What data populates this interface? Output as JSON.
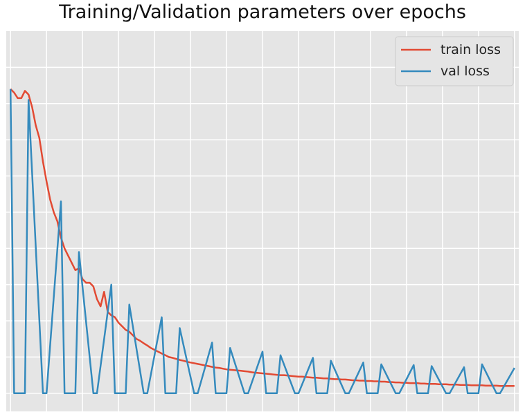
{
  "chart_data": {
    "type": "line",
    "title": "Training/Validation parameters over epochs",
    "xlabel": "",
    "ylabel": "",
    "xlim": [
      -1.2,
      141.2
    ],
    "ylim": [
      -0.05,
      1.0
    ],
    "grid": true,
    "background": "#e5e5e5",
    "legend_position": "top-right",
    "series": [
      {
        "name": "train loss",
        "color": "#e24a33",
        "x": [
          0,
          1,
          2,
          3,
          4,
          5,
          6,
          7,
          8,
          9,
          10,
          11,
          12,
          13,
          14,
          15,
          16,
          17,
          18,
          19,
          20,
          21,
          22,
          23,
          24,
          25,
          26,
          27,
          28,
          29,
          30,
          31,
          32,
          33,
          34,
          35,
          36,
          37,
          38,
          39,
          40,
          41,
          42,
          43,
          44,
          45,
          46,
          47,
          48,
          49,
          50,
          51,
          52,
          53,
          54,
          55,
          56,
          57,
          58,
          59,
          60,
          61,
          62,
          63,
          64,
          65,
          66,
          67,
          68,
          69,
          70,
          71,
          72,
          73,
          74,
          75,
          76,
          77,
          78,
          79,
          80,
          81,
          82,
          83,
          84,
          85,
          86,
          87,
          88,
          89,
          90,
          91,
          92,
          93,
          94,
          95,
          96,
          97,
          98,
          99,
          100,
          101,
          102,
          103,
          104,
          105,
          106,
          107,
          108,
          109,
          110,
          111,
          112,
          113,
          114,
          115,
          116,
          117,
          118,
          119,
          120,
          121,
          122,
          123,
          124,
          125,
          126,
          127,
          128,
          129,
          130,
          131,
          132,
          133,
          134,
          135,
          136,
          137,
          138,
          139,
          140
        ],
        "values": [
          0.84,
          0.83,
          0.815,
          0.815,
          0.835,
          0.825,
          0.79,
          0.74,
          0.705,
          0.64,
          0.585,
          0.535,
          0.5,
          0.475,
          0.43,
          0.4,
          0.38,
          0.36,
          0.34,
          0.345,
          0.315,
          0.305,
          0.305,
          0.295,
          0.26,
          0.24,
          0.28,
          0.225,
          0.215,
          0.21,
          0.195,
          0.185,
          0.175,
          0.17,
          0.16,
          0.15,
          0.145,
          0.138,
          0.132,
          0.125,
          0.12,
          0.115,
          0.11,
          0.105,
          0.1,
          0.098,
          0.095,
          0.092,
          0.09,
          0.087,
          0.085,
          0.083,
          0.081,
          0.079,
          0.077,
          0.075,
          0.073,
          0.071,
          0.07,
          0.068,
          0.066,
          0.065,
          0.064,
          0.063,
          0.062,
          0.061,
          0.06,
          0.058,
          0.057,
          0.056,
          0.055,
          0.054,
          0.053,
          0.052,
          0.051,
          0.05,
          0.05,
          0.049,
          0.048,
          0.047,
          0.046,
          0.046,
          0.045,
          0.044,
          0.043,
          0.043,
          0.042,
          0.041,
          0.041,
          0.04,
          0.039,
          0.039,
          0.038,
          0.038,
          0.037,
          0.036,
          0.036,
          0.035,
          0.035,
          0.034,
          0.034,
          0.033,
          0.033,
          0.032,
          0.032,
          0.031,
          0.031,
          0.03,
          0.03,
          0.029,
          0.029,
          0.028,
          0.028,
          0.028,
          0.027,
          0.027,
          0.026,
          0.026,
          0.026,
          0.025,
          0.025,
          0.025,
          0.024,
          0.024,
          0.024,
          0.023,
          0.023,
          0.023,
          0.022,
          0.022,
          0.022,
          0.022,
          0.021,
          0.021,
          0.021,
          0.021,
          0.02,
          0.02,
          0.02,
          0.02,
          0.02
        ]
      },
      {
        "name": "val loss",
        "color": "#348abd",
        "x": [
          0,
          1,
          4,
          5,
          9,
          10,
          14,
          15,
          18,
          19,
          23,
          24,
          28,
          29,
          32,
          33,
          37,
          38,
          42,
          43,
          46,
          47,
          51,
          52,
          56,
          57,
          60,
          61,
          65,
          66,
          70,
          71,
          74,
          75,
          79,
          80,
          84,
          85,
          88,
          89,
          93,
          94,
          98,
          99,
          102,
          103,
          107,
          108,
          112,
          113,
          116,
          117,
          121,
          122,
          126,
          127,
          130,
          131,
          135,
          136,
          140
        ],
        "values": [
          0.84,
          0.0,
          0.0,
          0.81,
          0.0,
          0.0,
          0.53,
          0.0,
          0.0,
          0.39,
          0.0,
          0.0,
          0.3,
          0.0,
          0.0,
          0.245,
          0.0,
          0.0,
          0.21,
          0.0,
          0.0,
          0.18,
          0.0,
          0.0,
          0.14,
          0.0,
          0.0,
          0.125,
          0.0,
          0.0,
          0.115,
          0.0,
          0.0,
          0.105,
          0.0,
          0.0,
          0.098,
          0.0,
          0.0,
          0.09,
          0.0,
          0.0,
          0.085,
          0.0,
          0.0,
          0.08,
          0.0,
          0.0,
          0.078,
          0.0,
          0.0,
          0.075,
          0.0,
          0.0,
          0.072,
          0.0,
          0.0,
          0.08,
          0.0,
          0.0,
          0.07
        ]
      }
    ]
  }
}
